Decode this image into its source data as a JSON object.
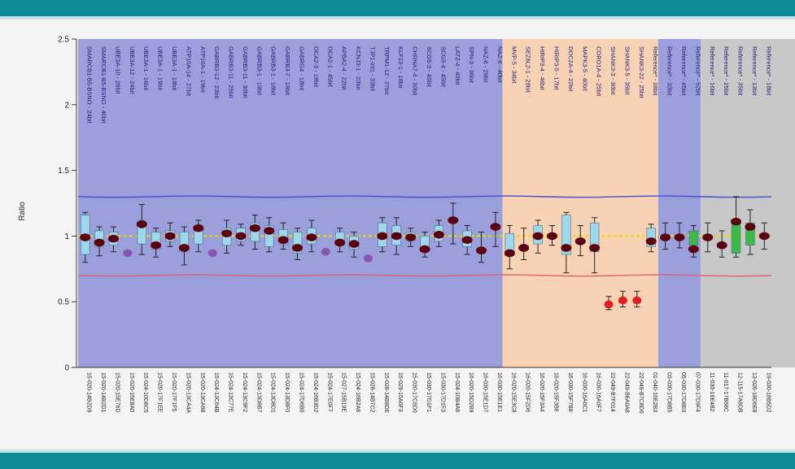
{
  "colors": {
    "band": "#0d8a94",
    "region_blue": "#9b9fdb",
    "region_orange": "#f8d2b4",
    "region_gray": "#c8c8c8",
    "upper_threshold": "#4a4ad0",
    "lower_threshold": "#e06070",
    "box_fill": "#9fd8ea",
    "box_fill_ref": "#3fb84a",
    "median_line": "#e8e000",
    "point_dark": "#5a0010",
    "point_purple": "#8a55b0",
    "point_red": "#e02020"
  },
  "chart_data": {
    "type": "box",
    "ylabel": "Ratio",
    "ylim": [
      0,
      2.5
    ],
    "yticks": [
      "0",
      "0.5",
      "1",
      "1.5",
      "2",
      "2.5"
    ],
    "thresholds": {
      "upper": 1.3,
      "lower": 0.7
    },
    "regions": [
      {
        "name": "blue-1",
        "color_key": "region_blue",
        "from": 0,
        "to": 29
      },
      {
        "name": "orange",
        "color_key": "region_orange",
        "from": 30,
        "to": 40
      },
      {
        "name": "blue-2",
        "color_key": "region_blue",
        "from": 41,
        "to": 43
      },
      {
        "name": "gray",
        "color_key": "region_gray",
        "from": 44,
        "to": 52
      }
    ],
    "samples": [
      {
        "label": "SMARCB1-B5-BSNO - 24bit",
        "id": "15-020-14B2D9",
        "value": 0.99,
        "q1": 0.86,
        "q3": 1.16,
        "min": 0.8,
        "max": 1.18,
        "color": "dark",
        "box": "blue"
      },
      {
        "label": "SMARCB1-B5-BSNO - 40bit",
        "id": "15-020-14B2D1",
        "value": 0.95,
        "q1": 0.92,
        "q3": 1.04,
        "min": 0.85,
        "max": 1.07,
        "color": "dark",
        "box": "blue"
      },
      {
        "label": "UBE3A-10 - 26bit",
        "id": "15-020-15E76D",
        "value": 0.98,
        "q1": 0.93,
        "q3": 1.03,
        "min": 0.88,
        "max": 1.07,
        "color": "dark",
        "box": "blue"
      },
      {
        "label": "UBE3A-12 - 24bit",
        "id": "15-020-15E8A0",
        "value": 0.87,
        "q1": 0.87,
        "q3": 0.87,
        "min": 0.87,
        "max": 0.87,
        "color": "purple",
        "box": "none"
      },
      {
        "label": "UBE3A-1 - 16bit",
        "id": "15-024-10D8C5",
        "value": 1.09,
        "q1": 0.94,
        "q3": 1.12,
        "min": 0.86,
        "max": 1.24,
        "color": "dark",
        "box": "blue"
      },
      {
        "label": "UBE3A-1 - 19bit",
        "id": "15-020-17F1EE",
        "value": 0.93,
        "q1": 0.9,
        "q3": 1.03,
        "min": 0.84,
        "max": 1.06,
        "color": "dark",
        "box": "blue"
      },
      {
        "label": "UBE3A-1 - 18bit",
        "id": "15-020-17F1F5",
        "value": 1.0,
        "q1": 0.96,
        "q3": 1.04,
        "min": 0.92,
        "max": 1.1,
        "color": "dark",
        "box": "blue"
      },
      {
        "label": "ATP10A-14 - 27bit",
        "id": "15-020-13CA4A",
        "value": 0.91,
        "q1": 0.88,
        "q3": 1.03,
        "min": 0.78,
        "max": 1.07,
        "color": "dark",
        "box": "blue"
      },
      {
        "label": "ATP10A-1 - 19bit",
        "id": "15-020-13CA98",
        "value": 1.06,
        "q1": 0.94,
        "q3": 1.08,
        "min": 0.88,
        "max": 1.12,
        "color": "dark",
        "box": "blue"
      },
      {
        "label": "GABRB3-12 - 23bit",
        "id": "15-024-13C64B",
        "value": 0.87,
        "q1": 0.87,
        "q3": 0.87,
        "min": 0.87,
        "max": 0.87,
        "color": "purple",
        "box": "none"
      },
      {
        "label": "GABRB3-11 - 25bit",
        "id": "15-024-13C77E",
        "value": 1.02,
        "q1": 0.93,
        "q3": 1.06,
        "min": 0.87,
        "max": 1.12,
        "color": "dark",
        "box": "blue"
      },
      {
        "label": "GABRB3-11 - 30bit",
        "id": "15-024-13C9F2",
        "value": 1.0,
        "q1": 0.96,
        "q3": 1.06,
        "min": 0.93,
        "max": 1.09,
        "color": "dark",
        "box": "blue"
      },
      {
        "label": "GABRB3-1 - 19bit",
        "id": "15-024-13D8B7",
        "value": 1.06,
        "q1": 0.96,
        "q3": 1.1,
        "min": 0.9,
        "max": 1.16,
        "color": "dark",
        "box": "blue"
      },
      {
        "label": "GABRB3-1 - 18bit",
        "id": "15-024-13D8D1",
        "value": 1.04,
        "q1": 0.92,
        "q3": 1.08,
        "min": 0.88,
        "max": 1.14,
        "color": "dark",
        "box": "blue"
      },
      {
        "label": "GABRB3-7 - 18bit",
        "id": "15-024-13D8F0",
        "value": 0.97,
        "q1": 0.94,
        "q3": 1.05,
        "min": 0.9,
        "max": 1.1,
        "color": "dark",
        "box": "blue"
      },
      {
        "label": "GABRG4 - 18bit",
        "id": "15-024-17D6B0",
        "value": 0.91,
        "q1": 0.87,
        "q3": 1.03,
        "min": 0.82,
        "max": 1.06,
        "color": "dark",
        "box": "blue"
      },
      {
        "label": "OCA2-3 - 18bit",
        "id": "15-024-16B3D2",
        "value": 0.99,
        "q1": 0.94,
        "q3": 1.06,
        "min": 0.88,
        "max": 1.12,
        "color": "dark",
        "box": "blue"
      },
      {
        "label": "OCA2-1 - 45bit",
        "id": "15-024-17E0F7",
        "value": 0.88,
        "q1": 0.88,
        "q3": 0.88,
        "min": 0.88,
        "max": 0.88,
        "color": "purple",
        "box": "none"
      },
      {
        "label": "APBA2-4 - 22bit",
        "id": "15-027-15B19E",
        "value": 0.95,
        "q1": 0.93,
        "q3": 1.03,
        "min": 0.88,
        "max": 1.06,
        "color": "dark",
        "box": "blue"
      },
      {
        "label": "KCNJ3-1 - 23bit",
        "id": "15-024-16B2A8",
        "value": 0.94,
        "q1": 0.9,
        "q3": 1.0,
        "min": 0.84,
        "max": 1.03,
        "color": "dark",
        "box": "blue"
      },
      {
        "label": "TJP1-int1 - 33bit",
        "id": "15-028-14B7C2",
        "value": 0.83,
        "q1": 0.83,
        "q3": 0.83,
        "min": 0.83,
        "max": 0.83,
        "color": "purple",
        "box": "none"
      },
      {
        "label": "TRPM1-12 - 27bit",
        "id": "15-028-14B8DE",
        "value": 1.0,
        "q1": 0.92,
        "q3": 1.1,
        "min": 0.88,
        "max": 1.14,
        "color": "dark",
        "box": "blue"
      },
      {
        "label": "KLF13-1 - 18bit",
        "id": "15-029-15A0F3",
        "value": 1.0,
        "q1": 0.93,
        "q3": 1.08,
        "min": 0.86,
        "max": 1.14,
        "color": "dark",
        "box": "blue"
      },
      {
        "label": "CHRNA7-4 - 30bit",
        "id": "15-030-17C6D0",
        "value": 0.99,
        "q1": 0.96,
        "q3": 1.03,
        "min": 0.92,
        "max": 1.06,
        "color": "dark",
        "box": "blue"
      },
      {
        "label": "SCG5-3 - 45bit",
        "id": "15-030-17D1F1",
        "value": 0.9,
        "q1": 0.88,
        "q3": 1.0,
        "min": 0.84,
        "max": 1.03,
        "color": "dark",
        "box": "blue"
      },
      {
        "label": "SCG5-4 - 45bit",
        "id": "15-030-17D1F3",
        "value": 1.01,
        "q1": 0.96,
        "q3": 1.08,
        "min": 0.92,
        "max": 1.12,
        "color": "dark",
        "box": "blue"
      },
      {
        "label": "LATZ-4 - 40bit",
        "id": "15-024-10B4A8",
        "value": 1.12,
        "q1": 1.0,
        "q3": 1.16,
        "min": 0.94,
        "max": 1.25,
        "color": "dark",
        "box": "none"
      },
      {
        "label": "SPN-3 - 36bit",
        "id": "16-020-15D2B9",
        "value": 0.97,
        "q1": 0.92,
        "q3": 1.04,
        "min": 0.86,
        "max": 1.08,
        "color": "dark",
        "box": "blue"
      },
      {
        "label": "NAZ-6 - 29bit",
        "id": "16-030-15E1D7",
        "value": 0.89,
        "q1": 0.89,
        "q3": 1.0,
        "min": 0.8,
        "max": 1.03,
        "color": "dark",
        "box": "none"
      },
      {
        "label": "NAZ-6 - 40bit",
        "id": "16-030-15E1E1",
        "value": 1.07,
        "q1": 0.96,
        "q3": 1.1,
        "min": 0.92,
        "max": 1.18,
        "color": "dark",
        "box": "none"
      },
      {
        "label": "MVP-5 - 34bit",
        "id": "16-020-15E3C8",
        "value": 0.87,
        "q1": 0.85,
        "q3": 1.02,
        "min": 0.75,
        "max": 1.08,
        "color": "dark",
        "box": "blue"
      },
      {
        "label": "SEZ6L2-1 - 28bit",
        "id": "16-020-15F2D6",
        "value": 0.91,
        "q1": 0.9,
        "q3": 1.0,
        "min": 0.82,
        "max": 1.06,
        "color": "dark",
        "box": "none"
      },
      {
        "label": "HIRIP3-4 - 46bit",
        "id": "16-020-15F3A4",
        "value": 1.0,
        "q1": 0.94,
        "q3": 1.08,
        "min": 0.87,
        "max": 1.12,
        "color": "dark",
        "box": "blue"
      },
      {
        "label": "HIRIP3-5 - 17bit",
        "id": "16-020-15F3B6",
        "value": 1.0,
        "q1": 0.96,
        "q3": 1.04,
        "min": 0.93,
        "max": 1.08,
        "color": "dark",
        "box": "none"
      },
      {
        "label": "DOC2A-4 - 22bit",
        "id": "16-030-15F7B8",
        "value": 0.91,
        "q1": 0.86,
        "q3": 1.16,
        "min": 0.72,
        "max": 1.18,
        "color": "dark",
        "box": "blue"
      },
      {
        "label": "MAPK3-5 - 40bit",
        "id": "16-030-16A0C1",
        "value": 0.96,
        "q1": 0.94,
        "q3": 1.02,
        "min": 0.85,
        "max": 1.08,
        "color": "dark",
        "box": "none"
      },
      {
        "label": "CORO1A-4 - 25bit",
        "id": "16-030-16A0F7",
        "value": 0.91,
        "q1": 0.88,
        "q3": 1.1,
        "min": 0.72,
        "max": 1.14,
        "color": "dark",
        "box": "blue"
      },
      {
        "label": "SHANK3-3 - 30bit",
        "id": "22-049-B7F014",
        "value": 0.48,
        "q1": 0.46,
        "q3": 0.52,
        "min": 0.44,
        "max": 0.54,
        "color": "red",
        "box": "none"
      },
      {
        "label": "SHANK3-5 - 35bit",
        "id": "22-049-B8A0A8",
        "value": 0.51,
        "q1": 0.48,
        "q3": 0.54,
        "min": 0.46,
        "max": 0.58,
        "color": "red",
        "box": "none"
      },
      {
        "label": "SHANK3-22 - 25bit",
        "id": "22-049-B7C8D0",
        "value": 0.51,
        "q1": 0.48,
        "q3": 0.54,
        "min": 0.46,
        "max": 0.58,
        "color": "red",
        "box": "none"
      },
      {
        "label": "Reference* - 38bit",
        "id": "01-040-16E2B3",
        "value": 0.96,
        "q1": 0.92,
        "q3": 1.06,
        "min": 0.88,
        "max": 1.09,
        "color": "dark",
        "box": "blue"
      },
      {
        "label": "Reference* - 33bit",
        "id": "03-030-17D8B5",
        "value": 0.99,
        "q1": 0.95,
        "q3": 1.02,
        "min": 0.9,
        "max": 1.1,
        "color": "dark",
        "box": "none"
      },
      {
        "label": "Reference* - 45bit",
        "id": "05-030-17D8E0",
        "value": 0.99,
        "q1": 0.96,
        "q3": 1.04,
        "min": 0.91,
        "max": 1.1,
        "color": "dark",
        "box": "none"
      },
      {
        "label": "Reference* - 52bit",
        "id": "07-030-17D9F4",
        "value": 0.9,
        "q1": 0.93,
        "q3": 1.04,
        "min": 0.84,
        "max": 1.08,
        "color": "dark",
        "box": "green"
      },
      {
        "label": "Reference* - 16bit",
        "id": "11-030-16E4B2",
        "value": 0.99,
        "q1": 0.95,
        "q3": 1.02,
        "min": 0.88,
        "max": 1.1,
        "color": "dark",
        "box": "none"
      },
      {
        "label": "Reference* - 25bit",
        "id": "11-017-17B68C",
        "value": 0.93,
        "q1": 0.9,
        "q3": 1.02,
        "min": 0.84,
        "max": 1.04,
        "color": "dark",
        "box": "none"
      },
      {
        "label": "Reference* - 35bit",
        "id": "12-115-17A6DB",
        "value": 1.11,
        "q1": 0.87,
        "q3": 1.12,
        "min": 0.84,
        "max": 1.3,
        "color": "dark",
        "box": "green"
      },
      {
        "label": "Reference* - 13bit",
        "id": "13-026-18D6E8",
        "value": 1.07,
        "q1": 0.93,
        "q3": 1.1,
        "min": 0.86,
        "max": 1.2,
        "color": "dark",
        "box": "green"
      },
      {
        "label": "Reference* - 18bit",
        "id": "19-030-18B5D2",
        "value": 1.0,
        "q1": 0.96,
        "q3": 1.04,
        "min": 0.9,
        "max": 1.1,
        "color": "dark",
        "box": "none"
      }
    ]
  }
}
